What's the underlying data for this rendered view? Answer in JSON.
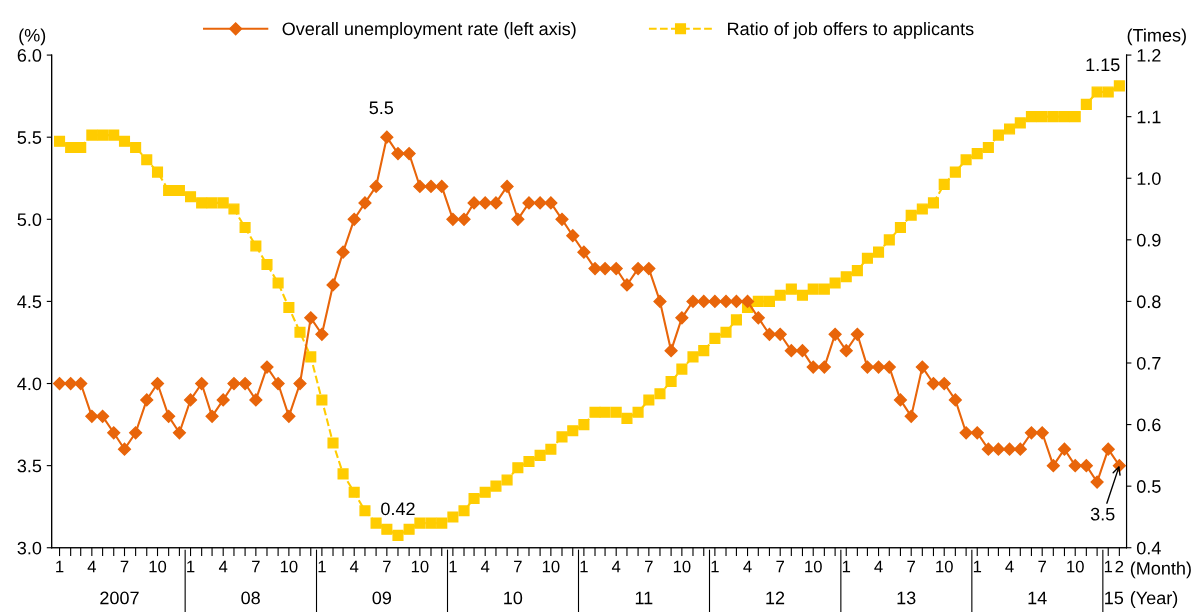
{
  "chart_data": {
    "type": "line",
    "x": [
      "2007-01",
      "2007-02",
      "2007-03",
      "2007-04",
      "2007-05",
      "2007-06",
      "2007-07",
      "2007-08",
      "2007-09",
      "2007-10",
      "2007-11",
      "2007-12",
      "2008-01",
      "2008-02",
      "2008-03",
      "2008-04",
      "2008-05",
      "2008-06",
      "2008-07",
      "2008-08",
      "2008-09",
      "2008-10",
      "2008-11",
      "2008-12",
      "2009-01",
      "2009-02",
      "2009-03",
      "2009-04",
      "2009-05",
      "2009-06",
      "2009-07",
      "2009-08",
      "2009-09",
      "2009-10",
      "2009-11",
      "2009-12",
      "2010-01",
      "2010-02",
      "2010-03",
      "2010-04",
      "2010-05",
      "2010-06",
      "2010-07",
      "2010-08",
      "2010-09",
      "2010-10",
      "2010-11",
      "2010-12",
      "2011-01",
      "2011-02",
      "2011-03",
      "2011-04",
      "2011-05",
      "2011-06",
      "2011-07",
      "2011-08",
      "2011-09",
      "2011-10",
      "2011-11",
      "2011-12",
      "2012-01",
      "2012-02",
      "2012-03",
      "2012-04",
      "2012-05",
      "2012-06",
      "2012-07",
      "2012-08",
      "2012-09",
      "2012-10",
      "2012-11",
      "2012-12",
      "2013-01",
      "2013-02",
      "2013-03",
      "2013-04",
      "2013-05",
      "2013-06",
      "2013-07",
      "2013-08",
      "2013-09",
      "2013-10",
      "2013-11",
      "2013-12",
      "2014-01",
      "2014-02",
      "2014-03",
      "2014-04",
      "2014-05",
      "2014-06",
      "2014-07",
      "2014-08",
      "2014-09",
      "2014-10",
      "2014-11",
      "2014-12",
      "2015-01",
      "2015-02"
    ],
    "series": [
      {
        "name": "Overall unemployment rate (left axis)",
        "color": "#e8650a",
        "marker": "diamond",
        "line_style": "solid",
        "values": [
          4.0,
          4.0,
          4.0,
          3.8,
          3.8,
          3.7,
          3.6,
          3.7,
          3.9,
          4.0,
          3.8,
          3.7,
          3.9,
          4.0,
          3.8,
          3.9,
          4.0,
          4.0,
          3.9,
          4.1,
          4.0,
          3.8,
          4.0,
          4.4,
          4.3,
          4.6,
          4.8,
          5.0,
          5.1,
          5.2,
          5.5,
          5.4,
          5.4,
          5.2,
          5.2,
          5.2,
          5.0,
          5.0,
          5.1,
          5.1,
          5.1,
          5.2,
          5.0,
          5.1,
          5.1,
          5.1,
          5.0,
          4.9,
          4.8,
          4.7,
          4.7,
          4.7,
          4.6,
          4.7,
          4.7,
          4.5,
          4.2,
          4.4,
          4.5,
          4.5,
          4.5,
          4.5,
          4.5,
          4.5,
          4.4,
          4.3,
          4.3,
          4.2,
          4.2,
          4.1,
          4.1,
          4.3,
          4.2,
          4.3,
          4.1,
          4.1,
          4.1,
          3.9,
          3.8,
          4.1,
          4.0,
          4.0,
          3.9,
          3.7,
          3.7,
          3.6,
          3.6,
          3.6,
          3.6,
          3.7,
          3.7,
          3.5,
          3.6,
          3.5,
          3.5,
          3.4,
          3.6,
          3.5
        ]
      },
      {
        "name": "Ratio of job offers to applicants",
        "color": "#ffcc00",
        "marker": "square",
        "line_style": "dashed",
        "axis": "y2",
        "values": [
          1.06,
          1.05,
          1.05,
          1.07,
          1.07,
          1.07,
          1.06,
          1.05,
          1.03,
          1.01,
          0.98,
          0.98,
          0.97,
          0.96,
          0.96,
          0.96,
          0.95,
          0.92,
          0.89,
          0.86,
          0.83,
          0.79,
          0.75,
          0.71,
          0.64,
          0.57,
          0.52,
          0.49,
          0.46,
          0.44,
          0.43,
          0.42,
          0.43,
          0.44,
          0.44,
          0.44,
          0.45,
          0.46,
          0.48,
          0.49,
          0.5,
          0.51,
          0.53,
          0.54,
          0.55,
          0.56,
          0.58,
          0.59,
          0.6,
          0.62,
          0.62,
          0.62,
          0.61,
          0.62,
          0.64,
          0.65,
          0.67,
          0.69,
          0.71,
          0.72,
          0.74,
          0.75,
          0.77,
          0.79,
          0.8,
          0.8,
          0.81,
          0.82,
          0.81,
          0.82,
          0.82,
          0.83,
          0.84,
          0.85,
          0.87,
          0.88,
          0.9,
          0.92,
          0.94,
          0.95,
          0.96,
          0.99,
          1.01,
          1.03,
          1.04,
          1.05,
          1.07,
          1.08,
          1.09,
          1.1,
          1.1,
          1.1,
          1.1,
          1.1,
          1.12,
          1.14,
          1.14,
          1.15
        ]
      }
    ],
    "xlim": [
      "2006-12-10",
      "2015-02-21"
    ],
    "xticks": [
      {
        "value": "2007-01",
        "label": "1"
      },
      {
        "value": "2007-02",
        "label": null
      },
      {
        "value": "2007-03",
        "label": null
      },
      {
        "value": "2007-04",
        "label": "4"
      },
      {
        "value": "2007-05",
        "label": null
      },
      {
        "value": "2007-06",
        "label": null
      },
      {
        "value": "2007-07",
        "label": "7"
      },
      {
        "value": "2007-08",
        "label": null
      },
      {
        "value": "2007-09",
        "label": null
      },
      {
        "value": "2007-10",
        "label": "10"
      },
      {
        "value": "2007-11",
        "label": null
      },
      {
        "value": "2007-12",
        "label": null
      },
      {
        "value": "2008-01",
        "label": "1"
      },
      {
        "value": "2008-02",
        "label": null
      },
      {
        "value": "2008-03",
        "label": null
      },
      {
        "value": "2008-04",
        "label": "4"
      },
      {
        "value": "2008-05",
        "label": null
      },
      {
        "value": "2008-06",
        "label": null
      },
      {
        "value": "2008-07",
        "label": "7"
      },
      {
        "value": "2008-08",
        "label": null
      },
      {
        "value": "2008-09",
        "label": null
      },
      {
        "value": "2008-10",
        "label": "10"
      },
      {
        "value": "2008-11",
        "label": null
      },
      {
        "value": "2008-12",
        "label": null
      },
      {
        "value": "2009-01",
        "label": "1"
      },
      {
        "value": "2009-02",
        "label": null
      },
      {
        "value": "2009-03",
        "label": null
      },
      {
        "value": "2009-04",
        "label": "4"
      },
      {
        "value": "2009-05",
        "label": null
      },
      {
        "value": "2009-06",
        "label": null
      },
      {
        "value": "2009-07",
        "label": "7"
      },
      {
        "value": "2009-08",
        "label": null
      },
      {
        "value": "2009-09",
        "label": null
      },
      {
        "value": "2009-10",
        "label": "10"
      },
      {
        "value": "2009-11",
        "label": null
      },
      {
        "value": "2009-12",
        "label": null
      },
      {
        "value": "2010-01",
        "label": "1"
      },
      {
        "value": "2010-02",
        "label": null
      },
      {
        "value": "2010-03",
        "label": null
      },
      {
        "value": "2010-04",
        "label": "4"
      },
      {
        "value": "2010-05",
        "label": null
      },
      {
        "value": "2010-06",
        "label": null
      },
      {
        "value": "2010-07",
        "label": "7"
      },
      {
        "value": "2010-08",
        "label": null
      },
      {
        "value": "2010-09",
        "label": null
      },
      {
        "value": "2010-10",
        "label": "10"
      },
      {
        "value": "2010-11",
        "label": null
      },
      {
        "value": "2010-12",
        "label": null
      },
      {
        "value": "2011-01",
        "label": "1"
      },
      {
        "value": "2011-02",
        "label": null
      },
      {
        "value": "2011-03",
        "label": null
      },
      {
        "value": "2011-04",
        "label": "4"
      },
      {
        "value": "2011-05",
        "label": null
      },
      {
        "value": "2011-06",
        "label": null
      },
      {
        "value": "2011-07",
        "label": "7"
      },
      {
        "value": "2011-08",
        "label": null
      },
      {
        "value": "2011-09",
        "label": null
      },
      {
        "value": "2011-10",
        "label": "10"
      },
      {
        "value": "2011-11",
        "label": null
      },
      {
        "value": "2011-12",
        "label": null
      },
      {
        "value": "2012-01",
        "label": "1"
      },
      {
        "value": "2012-02",
        "label": null
      },
      {
        "value": "2012-03",
        "label": null
      },
      {
        "value": "2012-04",
        "label": "4"
      },
      {
        "value": "2012-05",
        "label": null
      },
      {
        "value": "2012-06",
        "label": null
      },
      {
        "value": "2012-07",
        "label": "7"
      },
      {
        "value": "2012-08",
        "label": null
      },
      {
        "value": "2012-09",
        "label": null
      },
      {
        "value": "2012-10",
        "label": "10"
      },
      {
        "value": "2012-11",
        "label": null
      },
      {
        "value": "2012-12",
        "label": null
      },
      {
        "value": "2013-01",
        "label": "1"
      },
      {
        "value": "2013-02",
        "label": null
      },
      {
        "value": "2013-03",
        "label": null
      },
      {
        "value": "2013-04",
        "label": "4"
      },
      {
        "value": "2013-05",
        "label": null
      },
      {
        "value": "2013-06",
        "label": null
      },
      {
        "value": "2013-07",
        "label": "7"
      },
      {
        "value": "2013-08",
        "label": null
      },
      {
        "value": "2013-09",
        "label": null
      },
      {
        "value": "2013-10",
        "label": "10"
      },
      {
        "value": "2013-11",
        "label": null
      },
      {
        "value": "2013-12",
        "label": null
      },
      {
        "value": "2014-01",
        "label": "1"
      },
      {
        "value": "2014-02",
        "label": null
      },
      {
        "value": "2014-03",
        "label": null
      },
      {
        "value": "2014-04",
        "label": "4"
      },
      {
        "value": "2014-05",
        "label": null
      },
      {
        "value": "2014-06",
        "label": null
      },
      {
        "value": "2014-07",
        "label": "7"
      },
      {
        "value": "2014-08",
        "label": null
      },
      {
        "value": "2014-09",
        "label": null
      },
      {
        "value": "2014-10",
        "label": "10"
      },
      {
        "value": "2014-11",
        "label": null
      },
      {
        "value": "2014-12",
        "label": null
      },
      {
        "value": "2015-01",
        "label": "1"
      },
      {
        "value": "2015-02",
        "label": "2"
      }
    ],
    "ylim": [
      3.0,
      6.0
    ],
    "yticks": [
      {
        "value": 3,
        "label": "3.0"
      },
      {
        "value": 3.5,
        "label": "3.5"
      },
      {
        "value": 4,
        "label": "4.0"
      },
      {
        "value": 4.5,
        "label": "4.5"
      },
      {
        "value": 5,
        "label": "5.0"
      },
      {
        "value": 5.5,
        "label": "5.5"
      },
      {
        "value": 6,
        "label": "6.0"
      }
    ],
    "y2lim": [
      0.4,
      1.2
    ],
    "y2ticks": [
      0.4,
      0.5,
      0.6,
      0.7,
      0.8,
      0.9,
      {
        "value": 1,
        "label": "1.0"
      },
      1.1,
      1.2
    ],
    "xlabel": "(Month)",
    "ylabel": "(%)",
    "y2label": "(Times)",
    "legend": "top",
    "grid": false,
    "annotations": [
      "2007",
      "08",
      "09",
      "10",
      "11",
      "12",
      "13",
      "14",
      "15",
      "(Year)",
      {
        "text": "5.5",
        "x": "2009-07",
        "y": 5.5
      },
      "0.42",
      "1.15",
      {
        "text": "3.5",
        "x": "2015-02",
        "y": 3.5
      }
    ]
  }
}
